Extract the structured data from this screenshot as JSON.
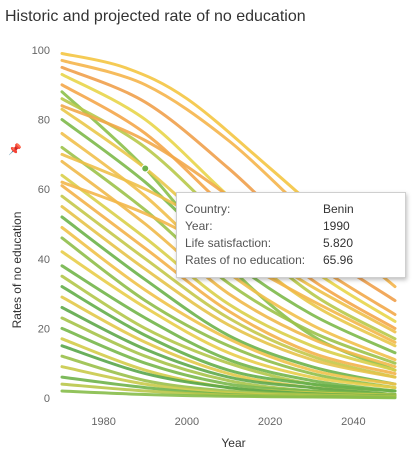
{
  "title": "Historic and projected rate of no education",
  "tooltip": {
    "rows": [
      {
        "key": "Country:",
        "value": "Benin"
      },
      {
        "key": "Year:",
        "value": "1990"
      },
      {
        "key": "Life satisfaction:",
        "value": "5.820"
      },
      {
        "key": "Rates of no education:",
        "value": "65.96"
      }
    ]
  },
  "chart_data": {
    "type": "line",
    "title": "Historic and projected rate of no education",
    "xlabel": "Year",
    "ylabel": "Rates of no education",
    "xlim": [
      1970,
      2050
    ],
    "ylim": [
      0,
      100
    ],
    "xticks": [
      1980,
      2000,
      2020,
      2040
    ],
    "yticks": [
      0,
      20,
      40,
      60,
      80,
      100
    ],
    "grid": false,
    "highlight": {
      "series": "Benin",
      "x": 1990,
      "y": 65.96
    },
    "series": [
      {
        "name": "Benin",
        "color": "#8cc04a",
        "values": [
          [
            1970,
            88
          ],
          [
            1990,
            65.96
          ],
          [
            2010,
            38
          ],
          [
            2030,
            18
          ],
          [
            2050,
            8
          ]
        ]
      },
      {
        "color": "#f4c542",
        "values": [
          [
            1970,
            99
          ],
          [
            1985,
            95
          ],
          [
            2000,
            86
          ],
          [
            2020,
            66
          ],
          [
            2040,
            45
          ],
          [
            2050,
            36
          ]
        ]
      },
      {
        "color": "#f5b54b",
        "values": [
          [
            1970,
            97
          ],
          [
            1990,
            90
          ],
          [
            2010,
            74
          ],
          [
            2030,
            52
          ],
          [
            2050,
            32
          ]
        ]
      },
      {
        "color": "#f0a04b",
        "values": [
          [
            1970,
            95
          ],
          [
            1990,
            85
          ],
          [
            2010,
            66
          ],
          [
            2030,
            44
          ],
          [
            2050,
            28
          ]
        ]
      },
      {
        "color": "#e8d54a",
        "values": [
          [
            1970,
            93
          ],
          [
            1990,
            80
          ],
          [
            2010,
            58
          ],
          [
            2030,
            37
          ],
          [
            2050,
            22
          ]
        ]
      },
      {
        "color": "#f4a64a",
        "values": [
          [
            1970,
            90
          ],
          [
            1990,
            76
          ],
          [
            2010,
            54
          ],
          [
            2030,
            34
          ],
          [
            2050,
            20
          ]
        ]
      },
      {
        "color": "#b8c94a",
        "values": [
          [
            1970,
            86
          ],
          [
            1990,
            72
          ],
          [
            2010,
            50
          ],
          [
            2030,
            30
          ],
          [
            2050,
            17
          ]
        ]
      },
      {
        "color": "#e9c84a",
        "values": [
          [
            1970,
            83
          ],
          [
            1990,
            66
          ],
          [
            2010,
            45
          ],
          [
            2030,
            27
          ],
          [
            2050,
            15
          ]
        ]
      },
      {
        "color": "#7db94a",
        "values": [
          [
            1970,
            80
          ],
          [
            1990,
            62
          ],
          [
            2010,
            40
          ],
          [
            2030,
            24
          ],
          [
            2050,
            13
          ]
        ]
      },
      {
        "color": "#f1c04c",
        "values": [
          [
            1970,
            76
          ],
          [
            1990,
            58
          ],
          [
            2010,
            36
          ],
          [
            2030,
            21
          ],
          [
            2050,
            11
          ]
        ]
      },
      {
        "color": "#9cc24a",
        "values": [
          [
            1970,
            72
          ],
          [
            1990,
            54
          ],
          [
            2010,
            33
          ],
          [
            2030,
            19
          ],
          [
            2050,
            10
          ]
        ]
      },
      {
        "color": "#efb94a",
        "values": [
          [
            1970,
            68
          ],
          [
            1990,
            50
          ],
          [
            2010,
            30
          ],
          [
            2030,
            17
          ],
          [
            2050,
            9
          ]
        ]
      },
      {
        "color": "#d9cf4a",
        "values": [
          [
            1970,
            64
          ],
          [
            1990,
            46
          ],
          [
            2010,
            27
          ],
          [
            2030,
            15
          ],
          [
            2050,
            8
          ]
        ]
      },
      {
        "color": "#f3b34a",
        "values": [
          [
            1970,
            61
          ],
          [
            1990,
            43
          ],
          [
            2010,
            25
          ],
          [
            2030,
            13
          ],
          [
            2050,
            7
          ]
        ]
      },
      {
        "color": "#c4c84a",
        "values": [
          [
            1970,
            58
          ],
          [
            1990,
            40
          ],
          [
            2010,
            23
          ],
          [
            2030,
            12
          ],
          [
            2050,
            6
          ]
        ]
      },
      {
        "color": "#e6c34a",
        "values": [
          [
            1970,
            55
          ],
          [
            1990,
            37
          ],
          [
            2010,
            21
          ],
          [
            2030,
            11
          ],
          [
            2050,
            6
          ]
        ]
      },
      {
        "color": "#6db24a",
        "values": [
          [
            1970,
            52
          ],
          [
            1990,
            34
          ],
          [
            2010,
            18
          ],
          [
            2030,
            9
          ],
          [
            2050,
            4
          ]
        ]
      },
      {
        "color": "#f0c24a",
        "values": [
          [
            1970,
            49
          ],
          [
            1990,
            31
          ],
          [
            2010,
            17
          ],
          [
            2030,
            8
          ],
          [
            2050,
            4
          ]
        ]
      },
      {
        "color": "#8fbe4a",
        "values": [
          [
            1970,
            46
          ],
          [
            1990,
            28
          ],
          [
            2010,
            15
          ],
          [
            2030,
            7
          ],
          [
            2050,
            3
          ]
        ]
      },
      {
        "color": "#e8cd4a",
        "values": [
          [
            1970,
            42
          ],
          [
            1990,
            26
          ],
          [
            2010,
            13
          ],
          [
            2030,
            6
          ],
          [
            2050,
            3
          ]
        ]
      },
      {
        "color": "#72b54a",
        "values": [
          [
            1970,
            38
          ],
          [
            1990,
            23
          ],
          [
            2010,
            11
          ],
          [
            2030,
            5
          ],
          [
            2050,
            2
          ]
        ]
      },
      {
        "color": "#b3c64a",
        "values": [
          [
            1970,
            35
          ],
          [
            1990,
            20
          ],
          [
            2010,
            10
          ],
          [
            2030,
            4
          ],
          [
            2050,
            2
          ]
        ]
      },
      {
        "color": "#64ae4a",
        "values": [
          [
            1970,
            32
          ],
          [
            1990,
            18
          ],
          [
            2010,
            8
          ],
          [
            2030,
            4
          ],
          [
            2050,
            2
          ]
        ]
      },
      {
        "color": "#e2c94a",
        "values": [
          [
            1970,
            29
          ],
          [
            1990,
            16
          ],
          [
            2010,
            7
          ],
          [
            2030,
            3
          ],
          [
            2050,
            1
          ]
        ]
      },
      {
        "color": "#5ea94a",
        "values": [
          [
            1970,
            26
          ],
          [
            1990,
            14
          ],
          [
            2010,
            6
          ],
          [
            2030,
            3
          ],
          [
            2050,
            1
          ]
        ]
      },
      {
        "color": "#a6c34a",
        "values": [
          [
            1970,
            23
          ],
          [
            1990,
            12
          ],
          [
            2010,
            5
          ],
          [
            2030,
            2
          ],
          [
            2050,
            1
          ]
        ]
      },
      {
        "color": "#78b74a",
        "values": [
          [
            1970,
            20
          ],
          [
            1990,
            10
          ],
          [
            2010,
            4
          ],
          [
            2030,
            2
          ],
          [
            2050,
            1
          ]
        ]
      },
      {
        "color": "#d3cc4a",
        "values": [
          [
            1970,
            17
          ],
          [
            1990,
            8
          ],
          [
            2010,
            3
          ],
          [
            2030,
            1.5
          ],
          [
            2050,
            0.8
          ]
        ]
      },
      {
        "color": "#59a64a",
        "values": [
          [
            1970,
            15
          ],
          [
            1990,
            7
          ],
          [
            2010,
            3
          ],
          [
            2030,
            1.2
          ],
          [
            2050,
            0.6
          ]
        ]
      },
      {
        "color": "#9ac04a",
        "values": [
          [
            1970,
            12
          ],
          [
            1990,
            5
          ],
          [
            2010,
            2
          ],
          [
            2030,
            1
          ],
          [
            2050,
            0.5
          ]
        ]
      },
      {
        "color": "#c9ca4a",
        "values": [
          [
            1970,
            9
          ],
          [
            1990,
            4
          ],
          [
            2010,
            1.5
          ],
          [
            2030,
            0.7
          ],
          [
            2050,
            0.4
          ]
        ]
      },
      {
        "color": "#6fb34a",
        "values": [
          [
            1970,
            6
          ],
          [
            1990,
            3
          ],
          [
            2010,
            1
          ],
          [
            2030,
            0.5
          ],
          [
            2050,
            0.3
          ]
        ]
      },
      {
        "color": "#b9c74a",
        "values": [
          [
            1970,
            4
          ],
          [
            1990,
            2
          ],
          [
            2010,
            0.8
          ],
          [
            2030,
            0.4
          ],
          [
            2050,
            0.2
          ]
        ]
      },
      {
        "color": "#86bc4a",
        "values": [
          [
            1970,
            2
          ],
          [
            1990,
            1
          ],
          [
            2010,
            0.5
          ],
          [
            2030,
            0.3
          ],
          [
            2050,
            0.1
          ]
        ]
      },
      {
        "color": "#f2a84a",
        "values": [
          [
            1970,
            84
          ],
          [
            1990,
            74
          ],
          [
            2010,
            58
          ],
          [
            2030,
            39
          ],
          [
            2050,
            24
          ]
        ]
      },
      {
        "color": "#eec04a",
        "values": [
          [
            1970,
            70
          ],
          [
            1990,
            60
          ],
          [
            2010,
            47
          ],
          [
            2030,
            32
          ],
          [
            2050,
            19
          ]
        ]
      },
      {
        "color": "#f3b74a",
        "values": [
          [
            1970,
            62
          ],
          [
            1990,
            53
          ],
          [
            2010,
            41
          ],
          [
            2030,
            28
          ],
          [
            2050,
            16
          ]
        ]
      }
    ]
  }
}
